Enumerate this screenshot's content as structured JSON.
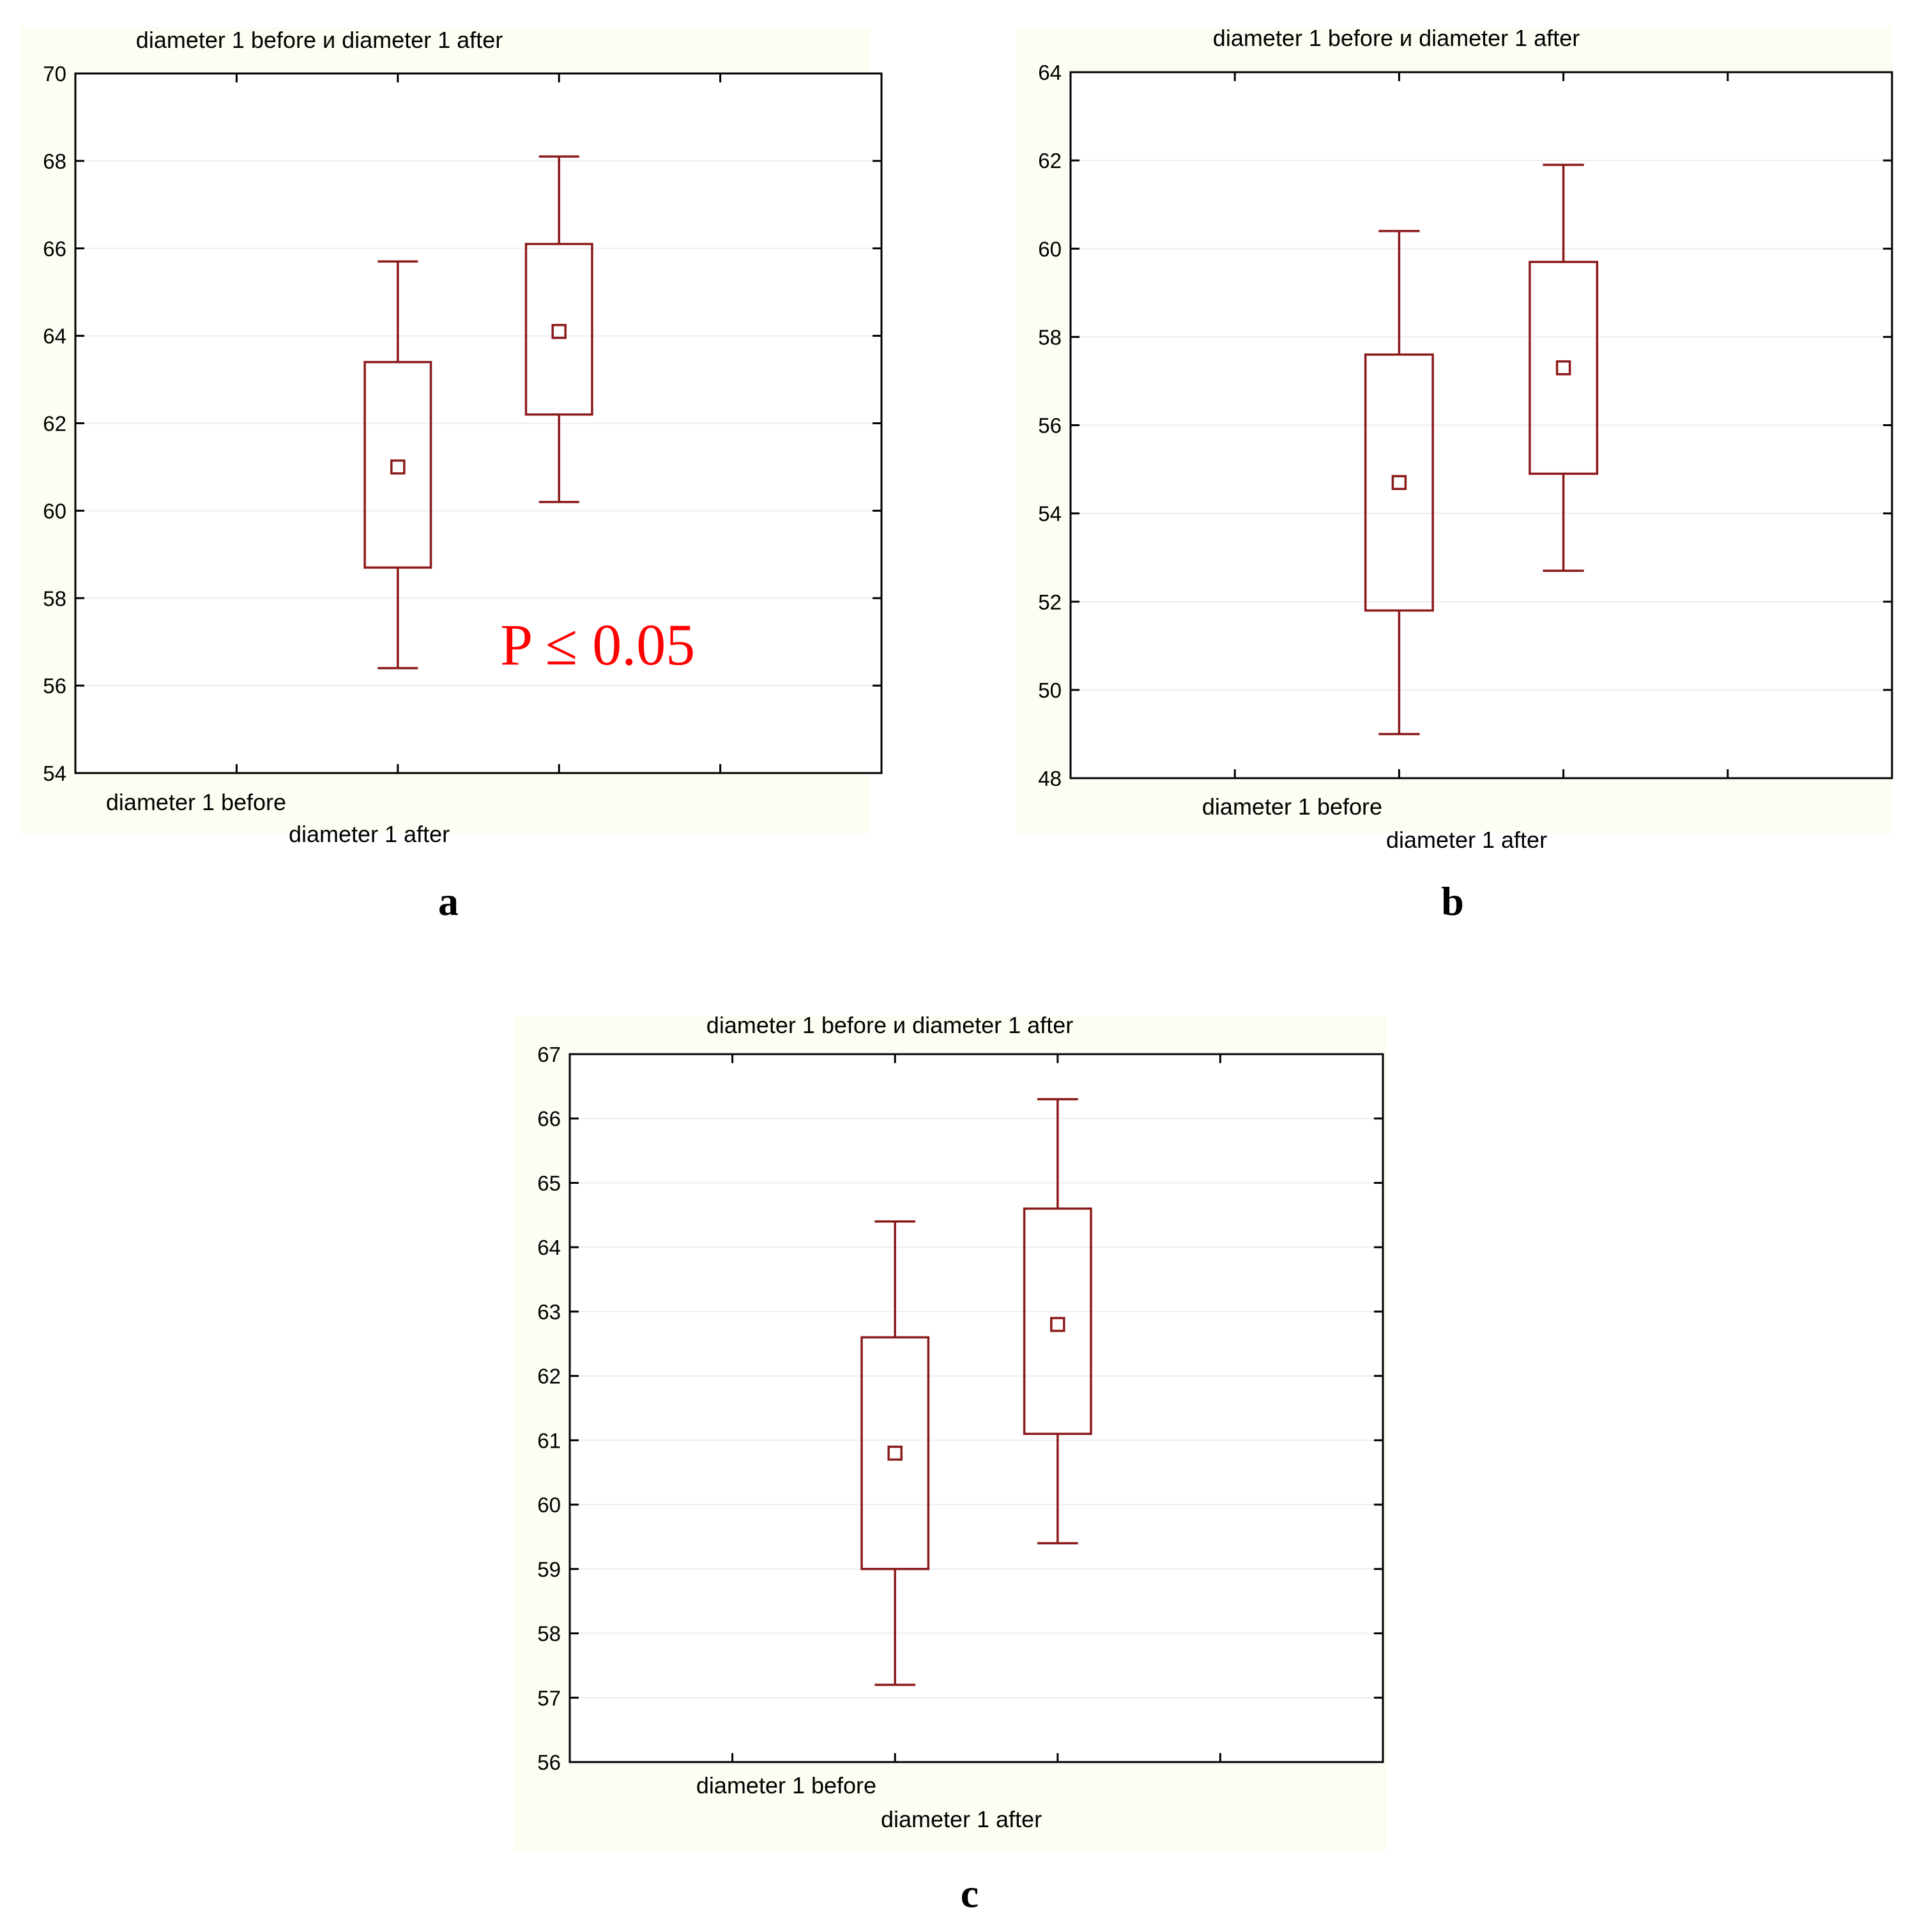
{
  "colors": {
    "panel_background": "#fdfdf3",
    "plot_background": "#ffffff",
    "box_stroke": "#8b1a1a",
    "annotation": "#ff0000"
  },
  "chart_data": [
    {
      "panel_label": "a",
      "type": "box",
      "title": "diameter 1 before  и  diameter 1 after",
      "categories": [
        "diameter 1 before",
        "diameter 1 after"
      ],
      "ylim": [
        54,
        70
      ],
      "yticks": [
        54,
        56,
        58,
        60,
        62,
        64,
        66,
        68,
        70
      ],
      "series": [
        {
          "category": "diameter 1 before",
          "mean": 61.0,
          "box_low": 58.7,
          "box_high": 63.4,
          "whisker_low": 56.4,
          "whisker_high": 65.7
        },
        {
          "category": "diameter 1 after",
          "mean": 64.1,
          "box_low": 62.2,
          "box_high": 66.1,
          "whisker_low": 60.2,
          "whisker_high": 68.1
        }
      ],
      "annotation": "P ≤ 0.05",
      "grid": true
    },
    {
      "panel_label": "b",
      "type": "box",
      "title": "diameter 1 before  и  diameter 1 after",
      "categories": [
        "diameter 1 before",
        "diameter 1 after"
      ],
      "ylim": [
        48,
        64
      ],
      "yticks": [
        48,
        50,
        52,
        54,
        56,
        58,
        60,
        62,
        64
      ],
      "series": [
        {
          "category": "diameter 1 before",
          "mean": 54.7,
          "box_low": 51.8,
          "box_high": 57.6,
          "whisker_low": 49.0,
          "whisker_high": 60.4
        },
        {
          "category": "diameter 1 after",
          "mean": 57.3,
          "box_low": 54.9,
          "box_high": 59.7,
          "whisker_low": 52.7,
          "whisker_high": 61.9
        }
      ],
      "annotation": "",
      "grid": true
    },
    {
      "panel_label": "c",
      "type": "box",
      "title": "diameter 1 before  и  diameter 1 after",
      "categories": [
        "diameter 1 before",
        "diameter 1 after"
      ],
      "ylim": [
        56,
        67
      ],
      "yticks": [
        56,
        57,
        58,
        59,
        60,
        61,
        62,
        63,
        64,
        65,
        66,
        67
      ],
      "series": [
        {
          "category": "diameter 1 before",
          "mean": 60.8,
          "box_low": 59.0,
          "box_high": 62.6,
          "whisker_low": 57.2,
          "whisker_high": 64.4
        },
        {
          "category": "diameter 1 after",
          "mean": 62.8,
          "box_low": 61.1,
          "box_high": 64.6,
          "whisker_low": 59.4,
          "whisker_high": 66.3
        }
      ],
      "annotation": "",
      "grid": true
    }
  ]
}
